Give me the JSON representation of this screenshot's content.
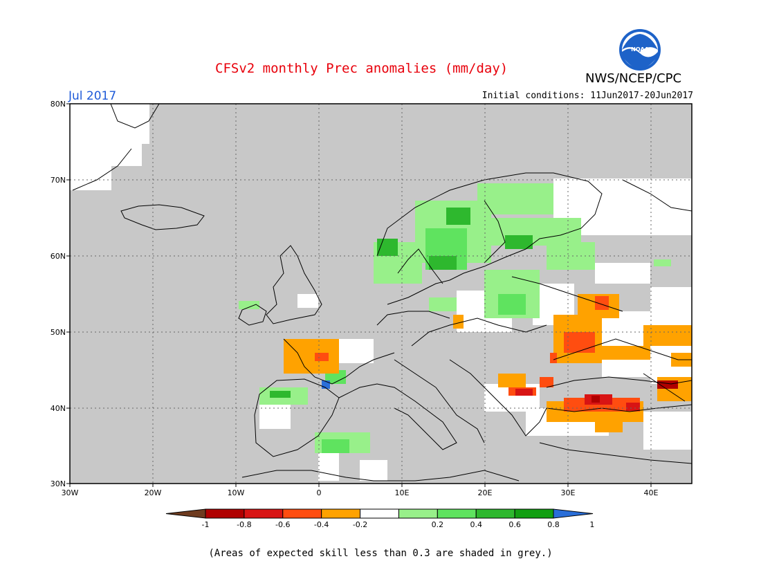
{
  "header": {
    "title": "CFSv2 monthly Prec anomalies (mm/day)",
    "org": "NWS/NCEP/CPC",
    "logo_text": "NOAA",
    "month": "Jul 2017",
    "initial_conditions": "Initial conditions: 11Jun2017-20Jun2017"
  },
  "map": {
    "lat_ticks": [
      "80N",
      "70N",
      "60N",
      "50N",
      "40N",
      "30N"
    ],
    "lon_ticks": [
      "30W",
      "20W",
      "10W",
      "0",
      "10E",
      "20E",
      "30E",
      "40E"
    ],
    "extent": {
      "lon_min": -30,
      "lon_max": 45,
      "lat_min": 30,
      "lat_max": 80
    },
    "grey_meaning": "low skill"
  },
  "legend": {
    "tick_labels": [
      "-1",
      "-0.8",
      "-0.6",
      "-0.4",
      "-0.2",
      "0.2",
      "0.4",
      "0.6",
      "0.8",
      "1"
    ],
    "colors": [
      "#6e3b1f",
      "#b00000",
      "#d81414",
      "#ff4d10",
      "#ffa200",
      "#ffffff",
      "#98f08a",
      "#5fe35f",
      "#2eb82e",
      "#129f12",
      "#2a6ed8"
    ]
  },
  "footnote": "(Areas of expected skill less than 0.3 are shaded in grey.)"
}
